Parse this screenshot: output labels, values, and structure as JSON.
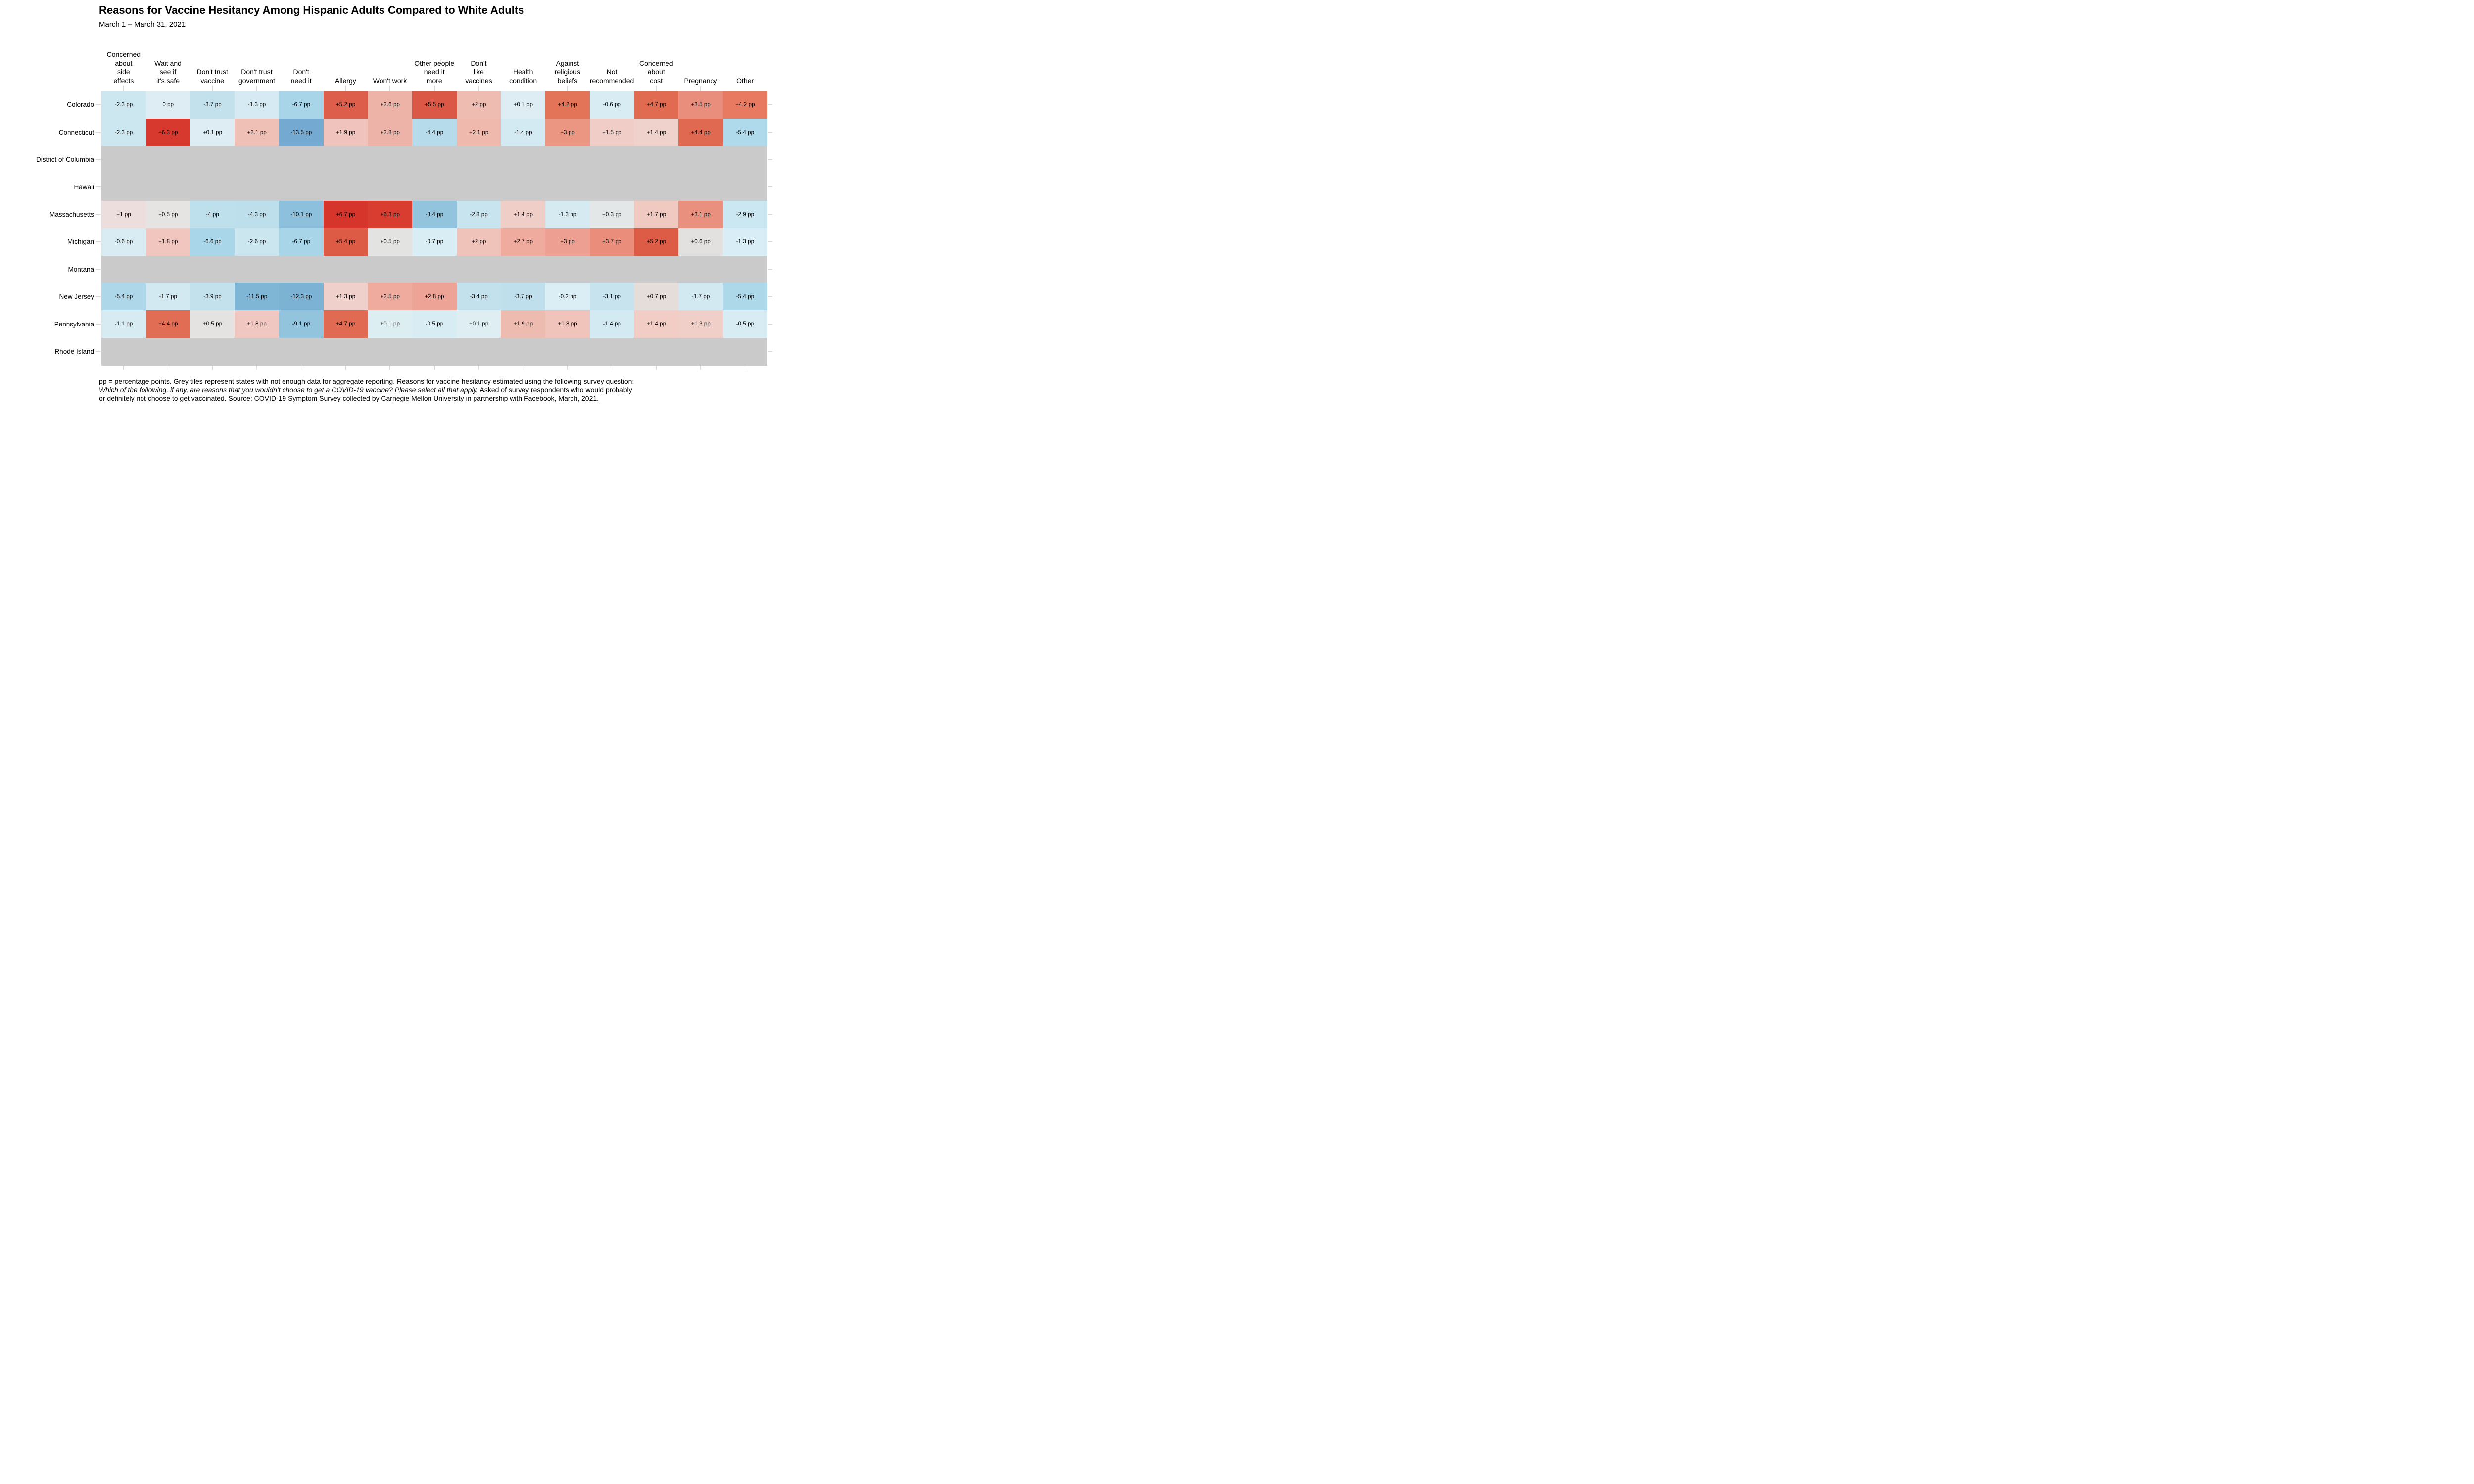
{
  "chart_data": {
    "type": "heatmap",
    "title": "Reasons for Vaccine Hesitancy Among Hispanic Adults Compared to White Adults",
    "subtitle": "March 1 – March 31, 2021",
    "unit": "percentage points (pp)",
    "xlabel": "",
    "ylabel": "",
    "layout": {
      "legend": false,
      "gridlines": false,
      "tick_color": "#d9d9d9"
    },
    "colors": {
      "no_data": "#cacaca",
      "tick": "#d9d9d9",
      "background": "#ffffff",
      "strong_red": "#d6352b",
      "strong_blue": "#74aad2"
    },
    "columns": [
      {
        "name": "Concerned about side effects",
        "lines": [
          "Concerned",
          "about",
          "side",
          "effects"
        ]
      },
      {
        "name": "Wait and see if it's safe",
        "lines": [
          "Wait and",
          "see if",
          "it's safe"
        ]
      },
      {
        "name": "Don't trust vaccine",
        "lines": [
          "Don't trust",
          "vaccine"
        ]
      },
      {
        "name": "Don't trust government",
        "lines": [
          "Don't trust",
          "government"
        ]
      },
      {
        "name": "Don't need it",
        "lines": [
          "Don't",
          "need it"
        ]
      },
      {
        "name": "Allergy",
        "lines": [
          "Allergy"
        ]
      },
      {
        "name": "Won't work",
        "lines": [
          "Won't work"
        ]
      },
      {
        "name": "Other people need it more",
        "lines": [
          "Other people",
          "need it",
          "more"
        ]
      },
      {
        "name": "Don't like vaccines",
        "lines": [
          "Don't",
          "like",
          "vaccines"
        ]
      },
      {
        "name": "Health condition",
        "lines": [
          "Health",
          "condition"
        ]
      },
      {
        "name": "Against religious beliefs",
        "lines": [
          "Against",
          "religious",
          "beliefs"
        ]
      },
      {
        "name": "Not recommended",
        "lines": [
          "Not",
          "recommended"
        ]
      },
      {
        "name": "Concerned about cost",
        "lines": [
          "Concerned",
          "about",
          "cost"
        ]
      },
      {
        "name": "Pregnancy",
        "lines": [
          "Pregnancy"
        ]
      },
      {
        "name": "Other",
        "lines": [
          "Other"
        ]
      }
    ],
    "rows": [
      {
        "state": "Colorado",
        "no_data": false,
        "values": [
          -2.3,
          0,
          -3.7,
          -1.3,
          -6.7,
          5.2,
          2.6,
          5.5,
          2,
          0.1,
          4.2,
          -0.6,
          4.7,
          3.5,
          4.2
        ],
        "labels": [
          "-2.3 pp",
          "0 pp",
          "-3.7 pp",
          "-1.3 pp",
          "-6.7 pp",
          "+5.2 pp",
          "+2.6 pp",
          "+5.5 pp",
          "+2 pp",
          "+0.1 pp",
          "+4.2 pp",
          "-0.6 pp",
          "+4.7 pp",
          "+3.5 pp",
          "+4.2 pp"
        ],
        "cell_colors": [
          "#cde7f1",
          "#ddedf3",
          "#c2e1ed",
          "#d5eaf2",
          "#a8d5e7",
          "#dd5f4b",
          "#edb3a7",
          "#dc5846",
          "#efbcb1",
          "#ddedf3",
          "#e37457",
          "#d8ecf4",
          "#e16b50",
          "#e98d7c",
          "#e87a62"
        ]
      },
      {
        "state": "Connecticut",
        "no_data": false,
        "values": [
          -2.3,
          6.3,
          0.1,
          2.1,
          -13.5,
          1.9,
          2.8,
          -4.4,
          2.1,
          -1.4,
          3,
          1.5,
          1.4,
          4.4,
          -5.4
        ],
        "labels": [
          "-2.3 pp",
          "+6.3 pp",
          "+0.1 pp",
          "+2.1 pp",
          "-13.5 pp",
          "+1.9 pp",
          "+2.8 pp",
          "-4.4 pp",
          "+2.1 pp",
          "-1.4 pp",
          "+3 pp",
          "+1.5 pp",
          "+1.4 pp",
          "+4.4 pp",
          "-5.4 pp"
        ],
        "cell_colors": [
          "#cde7f1",
          "#d8392e",
          "#ddedf3",
          "#efc0b6",
          "#74aad2",
          "#f0c4bc",
          "#eeb3a8",
          "#b6dbeb",
          "#efb9ad",
          "#d4eaf3",
          "#ea9683",
          "#f0cdc7",
          "#f0d2cc",
          "#e06a51",
          "#aedaec"
        ]
      },
      {
        "state": "District of Columbia",
        "no_data": true,
        "values": null,
        "labels": null,
        "cell_colors": null
      },
      {
        "state": "Hawaii",
        "no_data": true,
        "values": null,
        "labels": null,
        "cell_colors": null
      },
      {
        "state": "Massachusetts",
        "no_data": false,
        "values": [
          1,
          0.5,
          -4,
          -4.3,
          -10.1,
          6.7,
          6.3,
          -8.4,
          -2.8,
          1.4,
          -1.3,
          0.3,
          1.7,
          3.1,
          -2.9
        ],
        "labels": [
          "+1 pp",
          "+0.5 pp",
          "-4 pp",
          "-4.3 pp",
          "-10.1 pp",
          "+6.7 pp",
          "+6.3 pp",
          "-8.4 pp",
          "-2.8 pp",
          "+1.4 pp",
          "-1.3 pp",
          "+0.3 pp",
          "+1.7 pp",
          "+3.1 pp",
          "-2.9 pp"
        ],
        "cell_colors": [
          "#ecdedd",
          "#e6e3e3",
          "#bedfec",
          "#bddeeb",
          "#8cc0dc",
          "#d6352b",
          "#d83d30",
          "#92c4de",
          "#c8e4ef",
          "#f0cec8",
          "#d6eaf2",
          "#e3e7e8",
          "#f0c9c1",
          "#ea907e",
          "#cbe7f2"
        ]
      },
      {
        "state": "Michigan",
        "no_data": false,
        "values": [
          -0.6,
          1.8,
          -6.6,
          -2.6,
          -6.7,
          5.4,
          0.5,
          -0.7,
          2,
          2.7,
          3,
          3.7,
          5.2,
          0.6,
          -1.3
        ],
        "labels": [
          "-0.6 pp",
          "+1.8 pp",
          "-6.6 pp",
          "-2.6 pp",
          "-6.7 pp",
          "+5.4 pp",
          "+0.5 pp",
          "-0.7 pp",
          "+2 pp",
          "+2.7 pp",
          "+3 pp",
          "+3.7 pp",
          "+5.2 pp",
          "+0.6 pp",
          "-1.3 pp"
        ],
        "cell_colors": [
          "#d9ecf4",
          "#f0c6be",
          "#a9d6e8",
          "#cce6f0",
          "#a8d5e7",
          "#dd5b45",
          "#e3e3e2",
          "#d9edf4",
          "#f0c3ba",
          "#efab9e",
          "#eda092",
          "#ea8d7b",
          "#dd5c46",
          "#e2e1e0",
          "#d8edf5"
        ]
      },
      {
        "state": "Montana",
        "no_data": true,
        "values": null,
        "labels": null,
        "cell_colors": null
      },
      {
        "state": "New Jersey",
        "no_data": false,
        "values": [
          -5.4,
          -1.7,
          -3.9,
          -11.5,
          -12.3,
          1.3,
          2.5,
          2.8,
          -3.4,
          -3.7,
          -0.2,
          -3.1,
          0.7,
          -1.7,
          -5.4
        ],
        "labels": [
          "-5.4 pp",
          "-1.7 pp",
          "-3.9 pp",
          "-11.5 pp",
          "-12.3 pp",
          "+1.3 pp",
          "+2.5 pp",
          "+2.8 pp",
          "-3.4 pp",
          "-3.7 pp",
          "-0.2 pp",
          "-3.1 pp",
          "+0.7 pp",
          "-1.7 pp",
          "-5.4 pp"
        ],
        "cell_colors": [
          "#aed8e9",
          "#d3e9f1",
          "#c3e1ed",
          "#7fb5d5",
          "#7cb2d3",
          "#f0d0ca",
          "#eeab9e",
          "#eda496",
          "#c3e1ed",
          "#c0dfec",
          "#dceef5",
          "#c6e3ee",
          "#e5ddd9",
          "#d3e9f2",
          "#add8e9"
        ]
      },
      {
        "state": "Pennsylvania",
        "no_data": false,
        "values": [
          -1.1,
          4.4,
          0.5,
          1.8,
          -9.1,
          4.7,
          0.1,
          -0.5,
          0.1,
          1.9,
          1.8,
          -1.4,
          1.4,
          1.3,
          -0.5
        ],
        "labels": [
          "-1.1 pp",
          "+4.4 pp",
          "+0.5 pp",
          "+1.8 pp",
          "-9.1 pp",
          "+4.7 pp",
          "+0.1 pp",
          "-0.5 pp",
          "+0.1 pp",
          "+1.9 pp",
          "+1.8 pp",
          "-1.4 pp",
          "+1.4 pp",
          "+1.3 pp",
          "-0.5 pp"
        ],
        "cell_colors": [
          "#d7ebf3",
          "#e26d55",
          "#e4e3e2",
          "#f1c8c1",
          "#92c4de",
          "#e16b52",
          "#ddeef2",
          "#d8ecf4",
          "#dfeef2",
          "#eebbb1",
          "#f0c4bb",
          "#d4eaf3",
          "#f1cdc6",
          "#f1cfc9",
          "#d8ecf4"
        ]
      },
      {
        "state": "Rhode Island",
        "no_data": true,
        "values": null,
        "labels": null,
        "cell_colors": null
      }
    ],
    "footnote_lines": [
      [
        {
          "text": "pp = percentage points. Grey tiles represent states with not enough data for aggregate reporting. Reasons for vaccine hesitancy estimated using the following survey question:",
          "italic": false
        }
      ],
      [
        {
          "text": "Which of the following, if any, are reasons that you wouldn't choose to get a COVID-19 vaccine? Please select all that apply.",
          "italic": true
        },
        {
          "text": " Asked of survey respondents who would probably",
          "italic": false
        }
      ],
      [
        {
          "text": "or definitely not choose to get vaccinated. Source: COVID-19 Symptom Survey collected by Carnegie Mellon University in partnership with Facebook, March, 2021.",
          "italic": false
        }
      ]
    ]
  }
}
